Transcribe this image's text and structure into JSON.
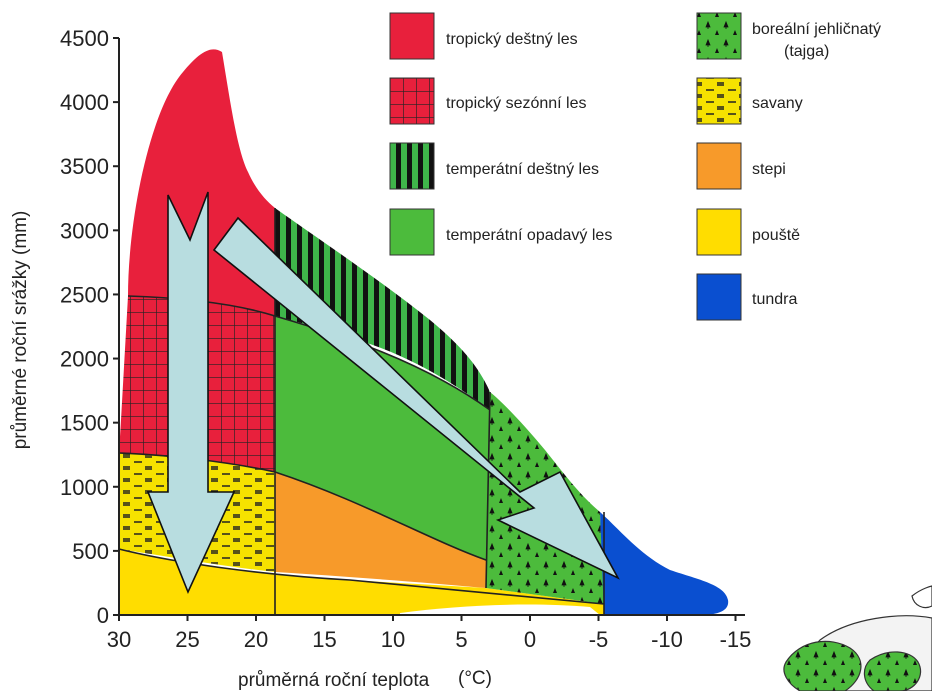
{
  "title": "",
  "axes": {
    "x_label": "průměrná roční teplota",
    "x_unit": "(°C)",
    "y_label": "průměrné roční srážky (mm)",
    "x_ticks": [
      "30",
      "25",
      "20",
      "15",
      "10",
      "5",
      "0",
      "-5",
      "-10",
      "-15"
    ],
    "y_ticks": [
      "4500",
      "4000",
      "3500",
      "3000",
      "2500",
      "2000",
      "1500",
      "1000",
      "500",
      "0"
    ]
  },
  "legend": [
    {
      "id": "tropical-rainforest",
      "label": "tropický deštný les",
      "pattern": "solid",
      "color": "#e8203c"
    },
    {
      "id": "tropical-seasonal-forest",
      "label": "tropický sezónní les",
      "pattern": "grid",
      "color": "#e8203c"
    },
    {
      "id": "temperate-rainforest",
      "label": "temperátní deštný les",
      "pattern": "stripes",
      "color": "#3fb54a"
    },
    {
      "id": "temperate-deciduous-forest",
      "label": "temperátní opadavý les",
      "pattern": "solid",
      "color": "#4cbb3c"
    },
    {
      "id": "boreal-forest",
      "label_line1": "boreální jehličnatý",
      "label_line2": "(tajga)",
      "pattern": "trees",
      "color": "#4cbb3c"
    },
    {
      "id": "savanna",
      "label": "savany",
      "pattern": "dashes",
      "color": "#f5e200"
    },
    {
      "id": "steppe",
      "label": "stepi",
      "pattern": "solid",
      "color": "#f79a2a"
    },
    {
      "id": "desert",
      "label": "pouště",
      "pattern": "solid",
      "color": "#ffdd00"
    },
    {
      "id": "tundra",
      "label": "tundra",
      "pattern": "solid",
      "color": "#0a4fd0"
    }
  ],
  "arrows": [
    {
      "id": "arrow-vertical",
      "meaning": "decreasing precipitation"
    },
    {
      "id": "arrow-diagonal",
      "meaning": "decreasing temperature"
    }
  ],
  "colors": {
    "arrow_fill": "#b8dde0",
    "arrow_stroke": "#111111",
    "grid_line": "#222222"
  }
}
